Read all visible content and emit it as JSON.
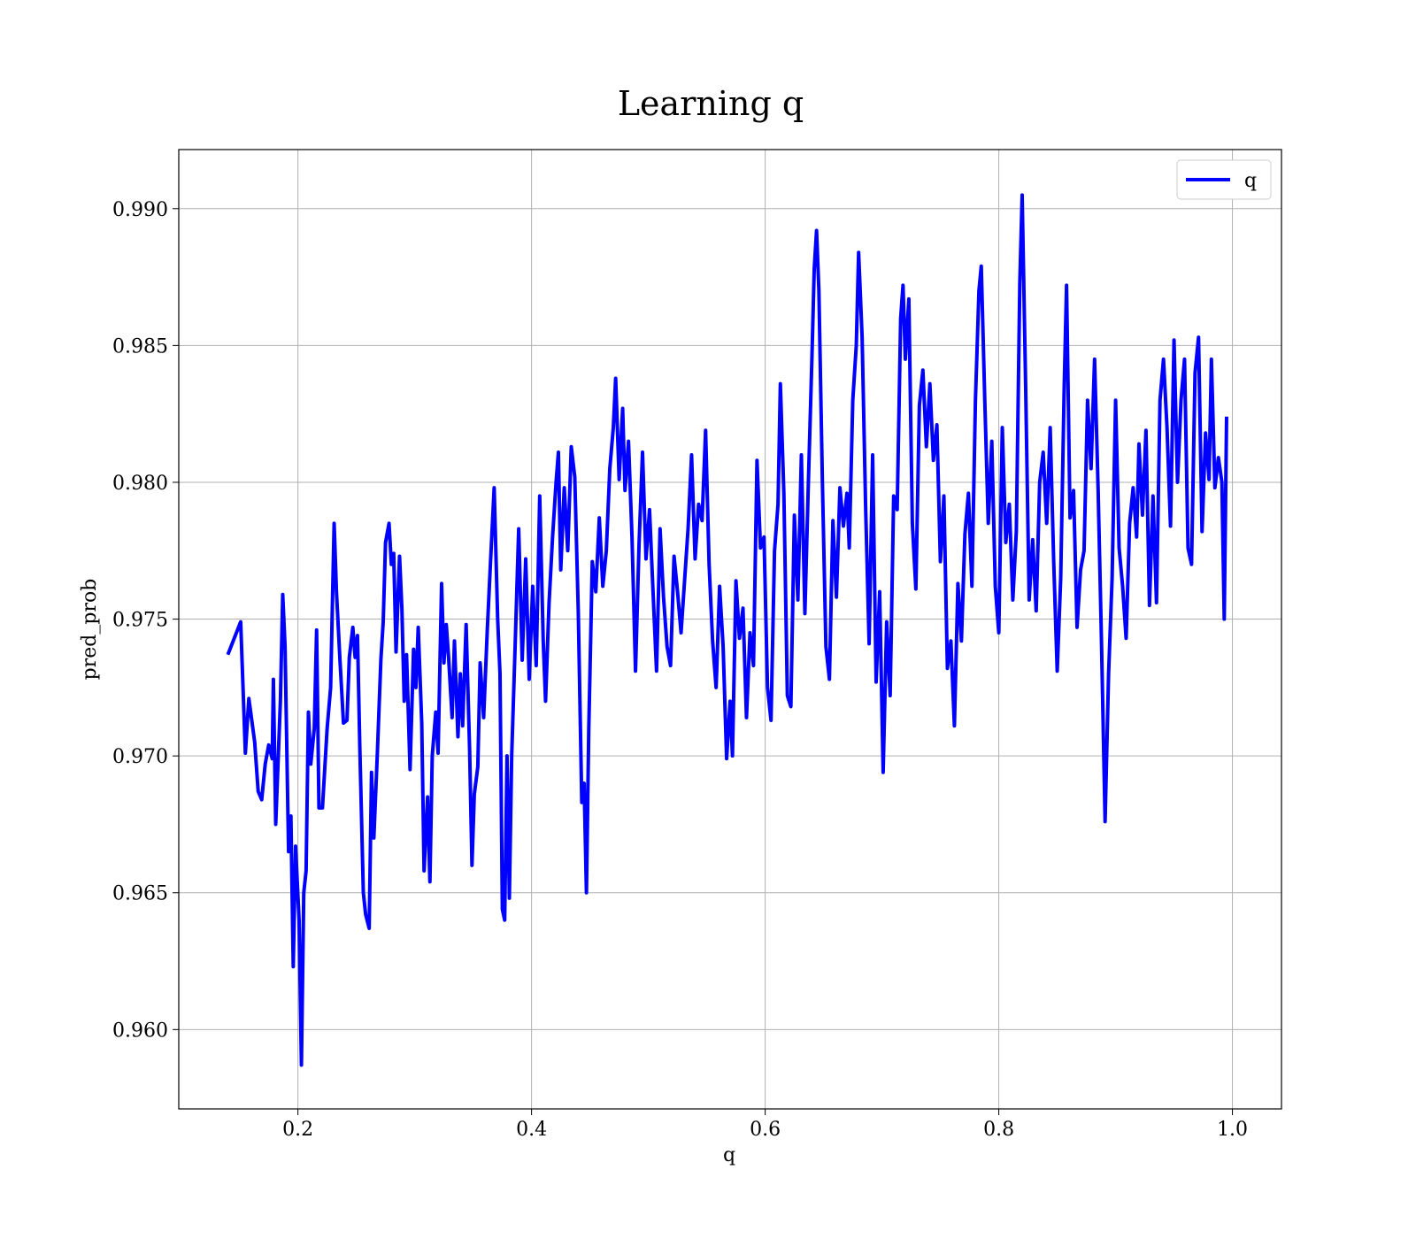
{
  "chart_data": {
    "type": "line",
    "title": "Learning q",
    "xlabel": "q",
    "ylabel": "pred_prob",
    "xlim": [
      0.098,
      1.042
    ],
    "ylim": [
      0.9571,
      0.99216
    ],
    "xticks": [
      0.2,
      0.4,
      0.6,
      0.8,
      {
        "value": 1,
        "label": "1.0"
      }
    ],
    "yticks": [
      {
        "value": 0.96,
        "label": "0.960"
      },
      0.965,
      {
        "value": 0.97,
        "label": "0.970"
      },
      0.975,
      {
        "value": 0.98,
        "label": "0.980"
      },
      0.985,
      {
        "value": 0.99,
        "label": "0.990"
      }
    ],
    "grid": true,
    "legend": "upper right",
    "x": [
      0.14,
      0.151,
      0.155,
      0.158,
      0.163,
      0.166,
      0.169,
      0.172,
      0.175,
      0.178,
      0.179,
      0.181,
      0.185,
      0.187,
      0.189,
      0.192,
      0.194,
      0.196,
      0.198,
      0.201,
      0.203,
      0.205,
      0.207,
      0.209,
      0.211,
      0.214,
      0.216,
      0.218,
      0.221,
      0.225,
      0.228,
      0.231,
      0.233,
      0.236,
      0.239,
      0.242,
      0.244,
      0.247,
      0.249,
      0.251,
      0.253,
      0.256,
      0.258,
      0.261,
      0.263,
      0.265,
      0.268,
      0.271,
      0.273,
      0.275,
      0.278,
      0.28,
      0.282,
      0.284,
      0.287,
      0.289,
      0.291,
      0.293,
      0.296,
      0.299,
      0.301,
      0.303,
      0.306,
      0.308,
      0.311,
      0.313,
      0.315,
      0.318,
      0.32,
      0.323,
      0.325,
      0.327,
      0.329,
      0.332,
      0.334,
      0.337,
      0.339,
      0.341,
      0.344,
      0.347,
      0.349,
      0.351,
      0.354,
      0.356,
      0.359,
      0.362,
      0.365,
      0.368,
      0.371,
      0.373,
      0.375,
      0.377,
      0.379,
      0.381,
      0.383,
      0.386,
      0.389,
      0.392,
      0.395,
      0.398,
      0.401,
      0.404,
      0.407,
      0.41,
      0.412,
      0.415,
      0.418,
      0.421,
      0.423,
      0.425,
      0.428,
      0.431,
      0.434,
      0.437,
      0.44,
      0.443,
      0.445,
      0.447,
      0.449,
      0.452,
      0.455,
      0.458,
      0.461,
      0.464,
      0.467,
      0.47,
      0.472,
      0.475,
      0.478,
      0.48,
      0.483,
      0.486,
      0.489,
      0.492,
      0.495,
      0.498,
      0.501,
      0.504,
      0.507,
      0.51,
      0.513,
      0.516,
      0.519,
      0.522,
      0.525,
      0.528,
      0.531,
      0.534,
      0.537,
      0.54,
      0.543,
      0.546,
      0.549,
      0.552,
      0.555,
      0.558,
      0.561,
      0.564,
      0.567,
      0.57,
      0.572,
      0.575,
      0.578,
      0.581,
      0.584,
      0.587,
      0.59,
      0.593,
      0.596,
      0.599,
      0.602,
      0.605,
      0.608,
      0.611,
      0.613,
      0.616,
      0.619,
      0.622,
      0.625,
      0.628,
      0.631,
      0.634,
      0.637,
      0.64,
      0.642,
      0.644,
      0.646,
      0.649,
      0.652,
      0.655,
      0.658,
      0.661,
      0.664,
      0.667,
      0.67,
      0.672,
      0.675,
      0.678,
      0.68,
      0.683,
      0.686,
      0.689,
      0.692,
      0.695,
      0.698,
      0.701,
      0.704,
      0.707,
      0.71,
      0.713,
      0.716,
      0.718,
      0.72,
      0.723,
      0.726,
      0.729,
      0.732,
      0.735,
      0.738,
      0.741,
      0.744,
      0.747,
      0.75,
      0.753,
      0.756,
      0.759,
      0.762,
      0.765,
      0.768,
      0.771,
      0.774,
      0.777,
      0.78,
      0.783,
      0.785,
      0.788,
      0.791,
      0.794,
      0.797,
      0.8,
      0.803,
      0.806,
      0.809,
      0.812,
      0.815,
      0.818,
      0.82,
      0.823,
      0.826,
      0.829,
      0.832,
      0.835,
      0.838,
      0.841,
      0.844,
      0.847,
      0.85,
      0.853,
      0.856,
      0.858,
      0.861,
      0.864,
      0.867,
      0.87,
      0.873,
      0.876,
      0.879,
      0.882,
      0.885,
      0.888,
      0.891,
      0.894,
      0.897,
      0.9,
      0.903,
      0.906,
      0.909,
      0.912,
      0.915,
      0.918,
      0.92,
      0.923,
      0.926,
      0.929,
      0.932,
      0.935,
      0.938,
      0.941,
      0.944,
      0.947,
      0.95,
      0.953,
      0.956,
      0.959,
      0.962,
      0.965,
      0.968,
      0.971,
      0.974,
      0.977,
      0.98,
      0.982,
      0.985,
      0.988,
      0.991,
      0.993,
      0.995
    ],
    "series": [
      {
        "name": "q",
        "color": "#0000ff",
        "values": [
          0.9737,
          0.9749,
          0.9701,
          0.9721,
          0.9705,
          0.9687,
          0.9684,
          0.9697,
          0.9704,
          0.9699,
          0.9728,
          0.9675,
          0.972,
          0.9759,
          0.974,
          0.9665,
          0.9678,
          0.9623,
          0.9667,
          0.964,
          0.9587,
          0.965,
          0.9658,
          0.9716,
          0.9697,
          0.971,
          0.9746,
          0.9681,
          0.9681,
          0.971,
          0.9725,
          0.9785,
          0.976,
          0.9735,
          0.9712,
          0.9713,
          0.9736,
          0.9747,
          0.9736,
          0.9744,
          0.9703,
          0.965,
          0.9642,
          0.9637,
          0.9694,
          0.967,
          0.9701,
          0.9735,
          0.9749,
          0.9778,
          0.9785,
          0.977,
          0.9774,
          0.9738,
          0.9773,
          0.9754,
          0.972,
          0.9737,
          0.9695,
          0.9739,
          0.9725,
          0.9747,
          0.9712,
          0.9658,
          0.9685,
          0.9654,
          0.97,
          0.9716,
          0.9701,
          0.9763,
          0.9734,
          0.9748,
          0.9736,
          0.9714,
          0.9742,
          0.9707,
          0.973,
          0.9711,
          0.9748,
          0.9702,
          0.966,
          0.9686,
          0.9696,
          0.9734,
          0.9714,
          0.9745,
          0.9772,
          0.9798,
          0.975,
          0.973,
          0.9644,
          0.964,
          0.97,
          0.9648,
          0.97,
          0.9741,
          0.9783,
          0.9735,
          0.9772,
          0.9728,
          0.9762,
          0.9733,
          0.9795,
          0.9742,
          0.972,
          0.9756,
          0.978,
          0.98,
          0.9811,
          0.9768,
          0.9798,
          0.9775,
          0.9813,
          0.9802,
          0.9753,
          0.9683,
          0.969,
          0.965,
          0.971,
          0.9771,
          0.976,
          0.9787,
          0.9762,
          0.9775,
          0.9805,
          0.982,
          0.9838,
          0.9801,
          0.9827,
          0.9797,
          0.9815,
          0.978,
          0.9731,
          0.9777,
          0.9811,
          0.9772,
          0.979,
          0.976,
          0.9731,
          0.9783,
          0.9758,
          0.974,
          0.9733,
          0.9773,
          0.976,
          0.9745,
          0.9764,
          0.9783,
          0.981,
          0.9772,
          0.9792,
          0.9786,
          0.9819,
          0.977,
          0.9742,
          0.9725,
          0.9762,
          0.974,
          0.9699,
          0.972,
          0.97,
          0.9764,
          0.9743,
          0.9754,
          0.9714,
          0.9745,
          0.9733,
          0.9808,
          0.9776,
          0.978,
          0.9725,
          0.9713,
          0.9775,
          0.9792,
          0.9836,
          0.9796,
          0.9722,
          0.9718,
          0.9788,
          0.9757,
          0.981,
          0.9752,
          0.98,
          0.9845,
          0.9878,
          0.9892,
          0.987,
          0.98,
          0.974,
          0.9728,
          0.9786,
          0.9758,
          0.9798,
          0.9784,
          0.9796,
          0.9776,
          0.983,
          0.985,
          0.9884,
          0.9853,
          0.9791,
          0.9741,
          0.981,
          0.9727,
          0.976,
          0.9694,
          0.9749,
          0.9722,
          0.9795,
          0.979,
          0.986,
          0.9872,
          0.9845,
          0.9867,
          0.9785,
          0.9761,
          0.9828,
          0.9841,
          0.9813,
          0.9836,
          0.9808,
          0.9821,
          0.9771,
          0.9795,
          0.9732,
          0.9742,
          0.9711,
          0.9763,
          0.9742,
          0.9781,
          0.9796,
          0.9762,
          0.983,
          0.987,
          0.9879,
          0.983,
          0.9785,
          0.9815,
          0.9762,
          0.9745,
          0.982,
          0.9778,
          0.9792,
          0.9757,
          0.9782,
          0.9873,
          0.9905,
          0.9835,
          0.9757,
          0.9779,
          0.9753,
          0.98,
          0.9811,
          0.9785,
          0.982,
          0.9771,
          0.9731,
          0.9765,
          0.9835,
          0.9872,
          0.9787,
          0.9797,
          0.9747,
          0.9768,
          0.9775,
          0.983,
          0.9805,
          0.9845,
          0.9798,
          0.974,
          0.9676,
          0.973,
          0.9765,
          0.983,
          0.9776,
          0.9762,
          0.9743,
          0.9785,
          0.9798,
          0.978,
          0.9814,
          0.9788,
          0.9819,
          0.9755,
          0.9795,
          0.9756,
          0.983,
          0.9845,
          0.982,
          0.9784,
          0.9852,
          0.98,
          0.983,
          0.9845,
          0.9776,
          0.977,
          0.984,
          0.9853,
          0.9782,
          0.9818,
          0.9801,
          0.9845,
          0.9798,
          0.9809,
          0.98,
          0.975,
          0.9824
        ]
      }
    ]
  }
}
